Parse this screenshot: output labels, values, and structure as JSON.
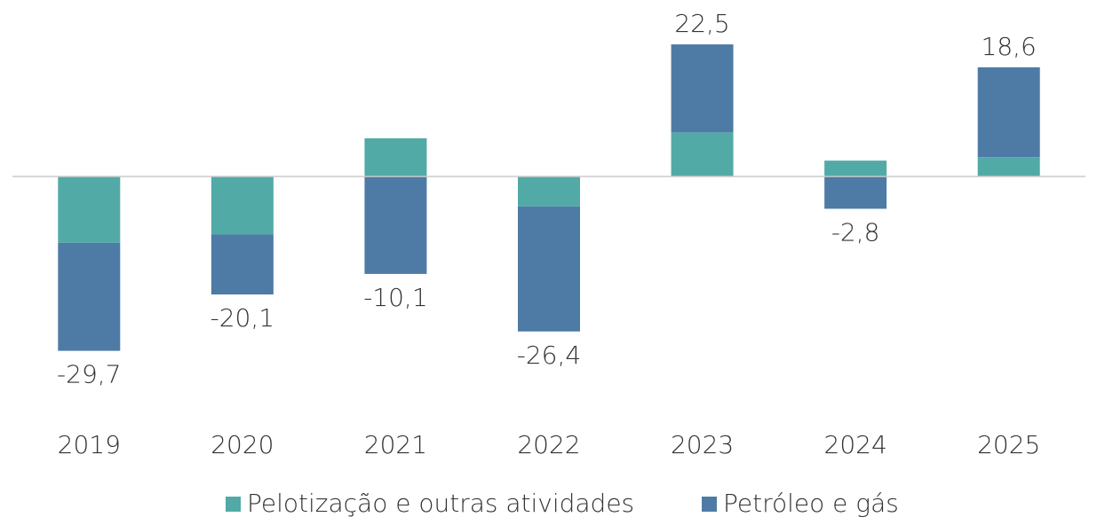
{
  "chart_data": {
    "type": "stacked_bar",
    "categories": [
      "2019",
      "2020",
      "2021",
      "2022",
      "2023",
      "2024",
      "2025"
    ],
    "series": [
      {
        "name": "Pelotização e outras atividades",
        "color": "#52aaa7",
        "values": [
          -11.3,
          -9.9,
          6.5,
          -5.1,
          7.5,
          2.7,
          3.3
        ]
      },
      {
        "name": "Petróleo e gás",
        "color": "#4e7ba6",
        "values": [
          -18.4,
          -10.2,
          -16.6,
          -21.3,
          15.0,
          -5.5,
          15.3
        ]
      }
    ],
    "totals": [
      -29.7,
      -20.1,
      -10.1,
      -26.4,
      22.5,
      -2.8,
      18.6
    ],
    "total_labels": [
      "-29,7",
      "-20,1",
      "-10,1",
      "-26,4",
      "22,5",
      "-2,8",
      "18,6"
    ],
    "legend": "bottom"
  }
}
